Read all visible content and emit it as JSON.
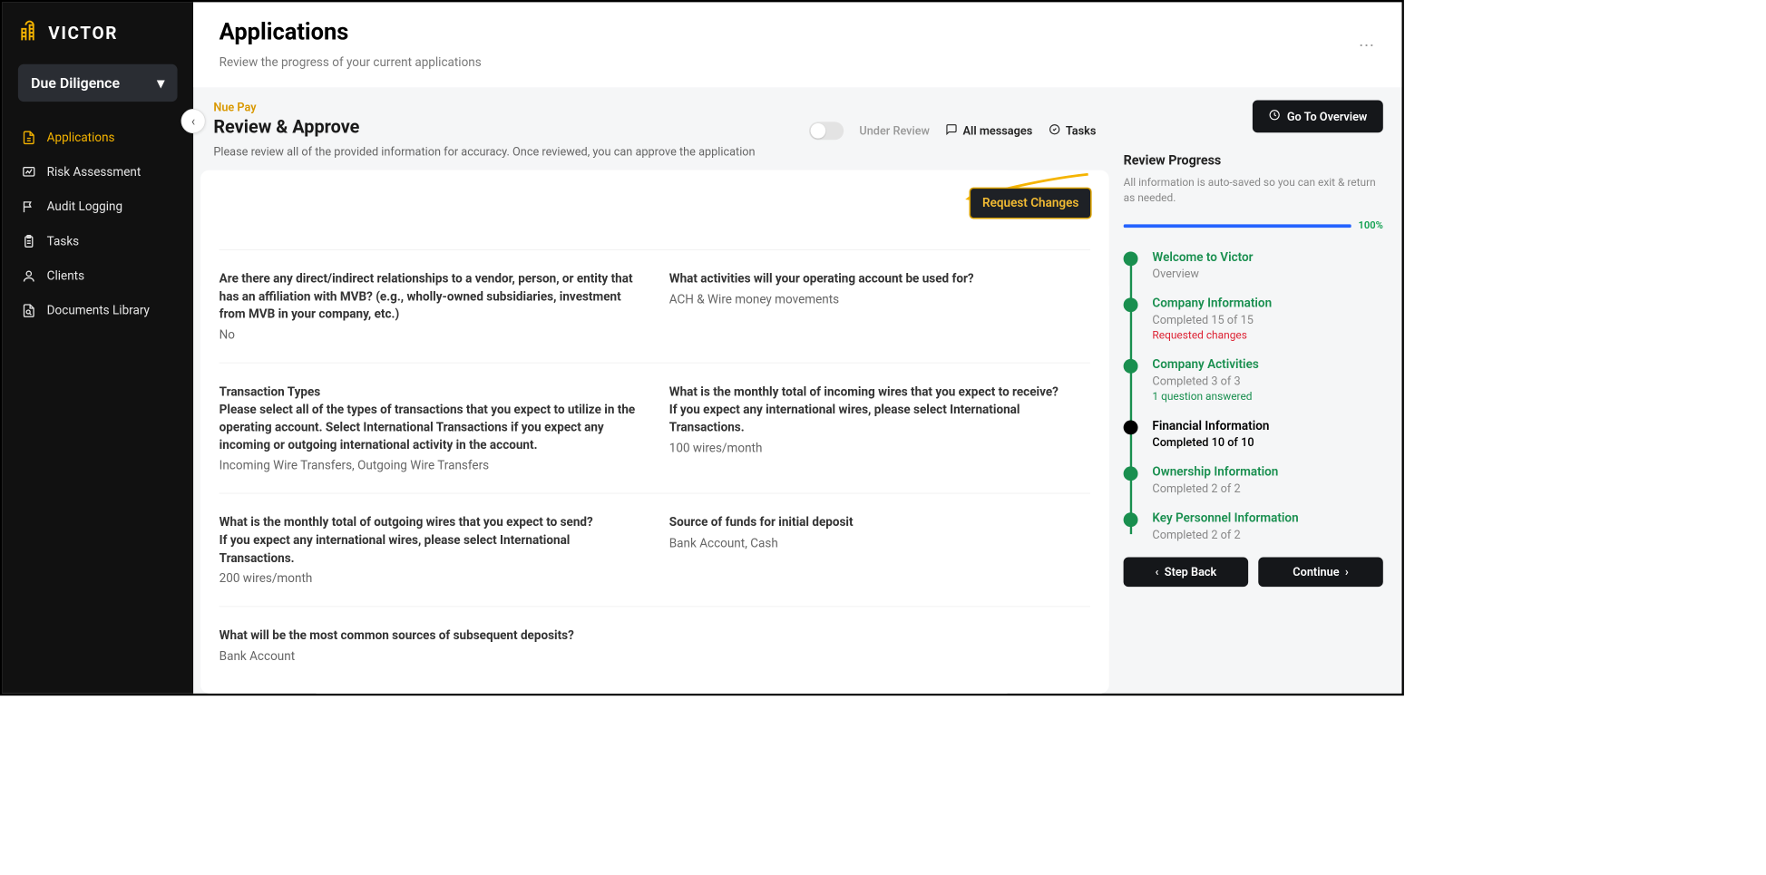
{
  "brand": {
    "name": "VICTOR"
  },
  "workspace": {
    "label": "Due Diligence"
  },
  "nav": [
    {
      "label": "Applications",
      "icon": "doc",
      "active": true
    },
    {
      "label": "Risk Assessment",
      "icon": "risk"
    },
    {
      "label": "Audit Logging",
      "icon": "flag"
    },
    {
      "label": "Tasks",
      "icon": "clipboard"
    },
    {
      "label": "Clients",
      "icon": "user"
    },
    {
      "label": "Documents Library",
      "icon": "search-doc"
    }
  ],
  "header": {
    "title": "Applications",
    "subtitle": "Review the progress of your current applications"
  },
  "section": {
    "company": "Nue Pay",
    "title": "Review & Approve",
    "desc": "Please review all of the provided information for accuracy. Once reviewed, you can approve the application",
    "under_review_label": "Under Review",
    "all_messages_label": "All messages",
    "tasks_label": "Tasks",
    "overview_btn": "Go To Overview",
    "request_changes": "Request Changes"
  },
  "qa": [
    [
      {
        "q": "Are there any direct/indirect relationships to a vendor, person, or entity that has an affiliation with MVB? (e.g., wholly-owned subsidiaries, investment from MVB in your company, etc.)",
        "a": "No"
      },
      {
        "q": "What activities will your operating account be used for?",
        "a": "ACH & Wire money movements"
      }
    ],
    [
      {
        "q_lead": "Transaction Types",
        "q": "Please select all of the types of transactions that you expect to utilize in the operating account. Select International Transactions if you expect any incoming or outgoing international activity in the account.",
        "a": "Incoming Wire Transfers, Outgoing Wire Transfers"
      },
      {
        "q": "What is the monthly total of incoming wires that you expect to receive?\nIf you expect any international wires, please select International Transactions.",
        "a": "100 wires/month"
      }
    ],
    [
      {
        "q": "What is the monthly total of outgoing wires that you expect to send?\nIf you expect any international wires, please select International Transactions.",
        "a": "200 wires/month"
      },
      {
        "q": "Source of funds for initial deposit",
        "a": "Bank Account, Cash"
      }
    ],
    [
      {
        "q": "What will be the most common sources of subsequent deposits?",
        "a": "Bank Account"
      },
      null
    ]
  ],
  "progress": {
    "title": "Review Progress",
    "desc": "All information is auto-saved so you can exit & return as needed.",
    "pct": 100,
    "pct_label": "100%",
    "steps": [
      {
        "title": "Welcome to Victor",
        "sub": "Overview"
      },
      {
        "title": "Company Information",
        "sub": "Completed 15 of 15",
        "note": "Requested changes",
        "note_kind": "red"
      },
      {
        "title": "Company Activities",
        "sub": "Completed 3 of 3",
        "note": "1 question answered",
        "note_kind": "green"
      },
      {
        "title": "Financial Information",
        "sub": "Completed 10 of 10",
        "current": true
      },
      {
        "title": "Ownership Information",
        "sub": "Completed 2 of 2"
      },
      {
        "title": "Key Personnel Information",
        "sub": "Completed 2 of 2"
      }
    ],
    "back_label": "Step Back",
    "continue_label": "Continue"
  },
  "colors": {
    "accent": "#f5b400",
    "green": "#198f4f",
    "blue": "#2563ff",
    "red": "#d23",
    "dark": "#15171a"
  }
}
